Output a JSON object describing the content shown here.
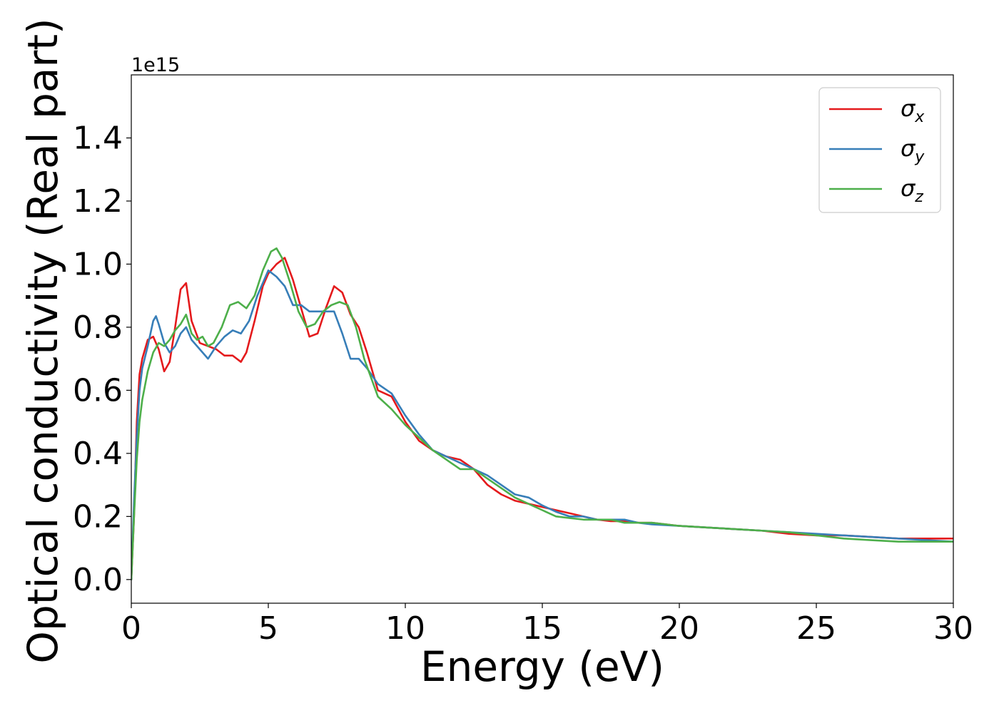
{
  "chart_data": {
    "type": "line",
    "title": "",
    "xlabel": "Energy (eV)",
    "ylabel": "Optical conductivity (Real part)",
    "y_offset_label": "1e15",
    "xlim": [
      0,
      30
    ],
    "ylim": [
      -0.075,
      1.6
    ],
    "xticks": [
      0,
      5,
      10,
      15,
      20,
      25,
      30
    ],
    "xtick_labels": [
      "0",
      "5",
      "10",
      "15",
      "20",
      "25",
      "30"
    ],
    "yticks": [
      0.0,
      0.2,
      0.4,
      0.6,
      0.8,
      1.0,
      1.2,
      1.4
    ],
    "ytick_labels": [
      "0.0",
      "0.2",
      "0.4",
      "0.6",
      "0.8",
      "1.0",
      "1.2",
      "1.4"
    ],
    "grid": false,
    "legend_position": "top-right",
    "series": [
      {
        "name": "σ",
        "subscript": "x",
        "color": "#e41a1c",
        "x": [
          0,
          0.1,
          0.2,
          0.3,
          0.4,
          0.6,
          0.8,
          1.0,
          1.2,
          1.4,
          1.6,
          1.8,
          2.0,
          2.2,
          2.5,
          2.8,
          3.1,
          3.4,
          3.7,
          4.0,
          4.2,
          4.5,
          4.8,
          5.0,
          5.3,
          5.6,
          5.9,
          6.2,
          6.5,
          6.8,
          7.1,
          7.4,
          7.7,
          8.0,
          8.3,
          8.6,
          9.0,
          9.5,
          10,
          10.5,
          11,
          11.5,
          12,
          12.5,
          13,
          13.5,
          14,
          14.5,
          15,
          15.5,
          16,
          16.5,
          17,
          17.5,
          18,
          18.5,
          19,
          20,
          21,
          22,
          23,
          24,
          25,
          26,
          27,
          28,
          29,
          30
        ],
        "y": [
          0.0,
          0.2,
          0.5,
          0.65,
          0.7,
          0.76,
          0.77,
          0.73,
          0.66,
          0.69,
          0.8,
          0.92,
          0.94,
          0.82,
          0.75,
          0.74,
          0.73,
          0.71,
          0.71,
          0.69,
          0.72,
          0.82,
          0.93,
          0.97,
          1.0,
          1.02,
          0.95,
          0.86,
          0.77,
          0.78,
          0.86,
          0.93,
          0.91,
          0.84,
          0.8,
          0.72,
          0.6,
          0.58,
          0.5,
          0.44,
          0.41,
          0.39,
          0.38,
          0.35,
          0.3,
          0.27,
          0.25,
          0.24,
          0.23,
          0.22,
          0.21,
          0.2,
          0.19,
          0.185,
          0.185,
          0.18,
          0.18,
          0.17,
          0.165,
          0.16,
          0.155,
          0.145,
          0.14,
          0.14,
          0.135,
          0.13,
          0.13,
          0.13
        ]
      },
      {
        "name": "σ",
        "subscript": "y",
        "color": "#377eb8",
        "x": [
          0,
          0.1,
          0.2,
          0.3,
          0.4,
          0.6,
          0.8,
          0.9,
          1.0,
          1.2,
          1.4,
          1.6,
          1.8,
          2.0,
          2.2,
          2.5,
          2.8,
          3.1,
          3.4,
          3.7,
          4.0,
          4.3,
          4.6,
          5.0,
          5.3,
          5.6,
          5.9,
          6.2,
          6.5,
          6.8,
          7.1,
          7.4,
          7.7,
          8.0,
          8.3,
          8.6,
          9.0,
          9.5,
          10,
          10.5,
          11,
          11.5,
          12,
          12.5,
          13,
          13.5,
          14,
          14.5,
          15,
          15.5,
          16,
          16.5,
          17,
          17.5,
          18,
          18.5,
          19,
          20,
          21,
          22,
          23,
          24,
          25,
          26,
          27,
          28,
          29,
          30
        ],
        "y": [
          0.0,
          0.25,
          0.45,
          0.6,
          0.67,
          0.74,
          0.82,
          0.835,
          0.81,
          0.75,
          0.72,
          0.74,
          0.78,
          0.8,
          0.76,
          0.73,
          0.7,
          0.74,
          0.77,
          0.79,
          0.78,
          0.82,
          0.9,
          0.98,
          0.96,
          0.93,
          0.87,
          0.87,
          0.85,
          0.85,
          0.85,
          0.85,
          0.78,
          0.7,
          0.7,
          0.67,
          0.62,
          0.59,
          0.52,
          0.46,
          0.41,
          0.39,
          0.37,
          0.35,
          0.33,
          0.3,
          0.27,
          0.26,
          0.235,
          0.215,
          0.2,
          0.2,
          0.19,
          0.19,
          0.19,
          0.18,
          0.175,
          0.17,
          0.165,
          0.16,
          0.155,
          0.15,
          0.145,
          0.14,
          0.135,
          0.13,
          0.125,
          0.12
        ]
      },
      {
        "name": "σ",
        "subscript": "z",
        "color": "#4daf4a",
        "x": [
          0,
          0.1,
          0.2,
          0.3,
          0.4,
          0.6,
          0.8,
          1.0,
          1.2,
          1.4,
          1.6,
          1.8,
          2.0,
          2.2,
          2.4,
          2.6,
          2.8,
          3.0,
          3.3,
          3.6,
          3.9,
          4.2,
          4.5,
          4.8,
          5.1,
          5.3,
          5.5,
          5.8,
          6.1,
          6.4,
          6.7,
          7.0,
          7.3,
          7.6,
          7.9,
          8.2,
          8.5,
          9.0,
          9.5,
          10,
          10.5,
          11,
          11.5,
          12,
          12.5,
          13,
          13.5,
          14,
          14.5,
          15,
          15.5,
          16,
          16.5,
          17,
          17.5,
          18,
          18.5,
          19,
          20,
          21,
          22,
          23,
          24,
          25,
          26,
          27,
          28,
          29,
          30
        ],
        "y": [
          0.0,
          0.2,
          0.38,
          0.5,
          0.57,
          0.66,
          0.72,
          0.75,
          0.74,
          0.76,
          0.79,
          0.81,
          0.84,
          0.78,
          0.76,
          0.77,
          0.74,
          0.75,
          0.8,
          0.87,
          0.88,
          0.86,
          0.9,
          0.98,
          1.04,
          1.05,
          1.02,
          0.94,
          0.85,
          0.8,
          0.81,
          0.85,
          0.87,
          0.88,
          0.87,
          0.8,
          0.7,
          0.58,
          0.54,
          0.49,
          0.45,
          0.41,
          0.38,
          0.35,
          0.35,
          0.32,
          0.29,
          0.26,
          0.24,
          0.22,
          0.2,
          0.195,
          0.19,
          0.19,
          0.19,
          0.18,
          0.18,
          0.18,
          0.17,
          0.165,
          0.16,
          0.155,
          0.15,
          0.14,
          0.13,
          0.125,
          0.12,
          0.12,
          0.12
        ]
      }
    ]
  }
}
